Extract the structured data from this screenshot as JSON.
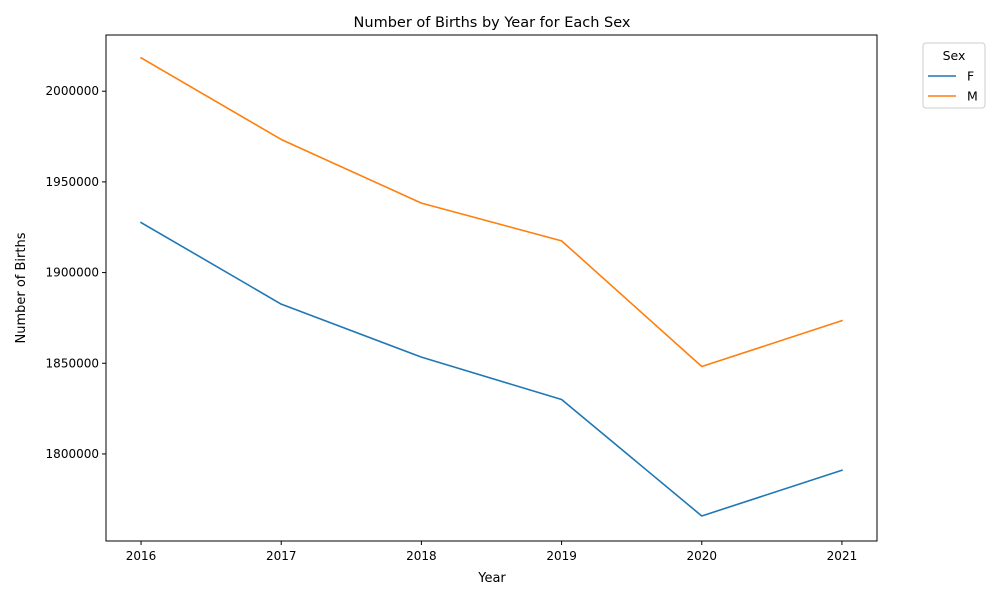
{
  "chart_data": {
    "type": "line",
    "title": "Number of Births by Year for Each Sex",
    "xlabel": "Year",
    "ylabel": "Number of Births",
    "x": [
      2016,
      2017,
      2018,
      2019,
      2020,
      2021
    ],
    "xticks": [
      "2016",
      "2017",
      "2018",
      "2019",
      "2020",
      "2021"
    ],
    "yticks": [
      1800000,
      1850000,
      1900000,
      1950000,
      2000000
    ],
    "ytick_labels": [
      "1800000",
      "1850000",
      "1900000",
      "1950000",
      "2000000"
    ],
    "xlim": [
      2015.75,
      2021.25
    ],
    "ylim": [
      1752000,
      2031000
    ],
    "grid": false,
    "legend": {
      "title": "Sex",
      "placement": "outside-top-right"
    },
    "series": [
      {
        "name": "F",
        "color": "#1f77b4",
        "values": [
          1927600,
          1882600,
          1853400,
          1830000,
          1765800,
          1791000
        ]
      },
      {
        "name": "M",
        "color": "#ff7f0e",
        "values": [
          2018400,
          1973400,
          1938300,
          1917500,
          1848200,
          1873500
        ]
      }
    ]
  }
}
